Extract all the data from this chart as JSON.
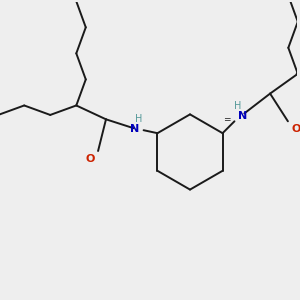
{
  "background_color": "#eeeeee",
  "bond_color": "#1a1a1a",
  "nitrogen_color": "#0000bb",
  "oxygen_color": "#cc2200",
  "nh_color": "#559999",
  "line_width": 1.4,
  "figsize": [
    3.0,
    3.0
  ],
  "dpi": 100,
  "xlim": [
    0,
    300
  ],
  "ylim": [
    0,
    300
  ]
}
